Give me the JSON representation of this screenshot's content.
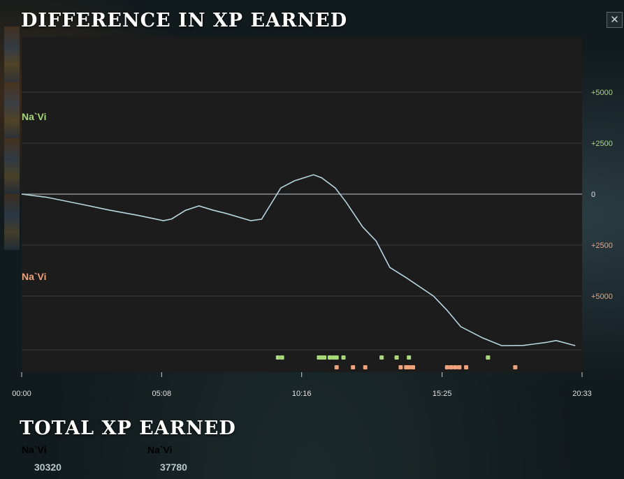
{
  "window": {
    "title": "DIFFERENCE IN XP EARNED",
    "close_label": "✕"
  },
  "colors": {
    "radiant": "#a8d87a",
    "dire": "#f0a27a",
    "line": "#b8d6e0",
    "axis_text": "#e2e2e2"
  },
  "chart_data": {
    "type": "line",
    "title": "DIFFERENCE IN XP EARNED",
    "x_unit": "minutes",
    "x_ticks": [
      "00:00",
      "05:08",
      "10:16",
      "15:25",
      "20:33"
    ],
    "x_tick_values": [
      0,
      5.133,
      10.267,
      15.417,
      20.55
    ],
    "x_range": [
      0,
      20.55
    ],
    "y_ticks": [
      {
        "value": 5000,
        "label": "+5000",
        "side": "radiant"
      },
      {
        "value": 2500,
        "label": "+2500",
        "side": "radiant"
      },
      {
        "value": 0,
        "label": "0",
        "side": "neutral"
      },
      {
        "value": -2500,
        "label": "+2500",
        "side": "dire"
      },
      {
        "value": -5000,
        "label": "+5000",
        "side": "dire"
      }
    ],
    "y_range": [
      -7650,
      7650
    ],
    "upper_team_label": "Na`Vi",
    "lower_team_label": "Na`Vi",
    "grid": true,
    "series": [
      {
        "x": [
          0,
          0.9,
          2.2,
          3.2,
          4.3,
          5.2,
          5.5,
          6.0,
          6.5,
          7.0,
          7.5,
          8.4,
          8.8,
          9.5,
          10.0,
          10.7,
          11.0,
          11.5,
          11.9,
          12.5,
          13.0,
          13.5,
          14.1,
          15.1,
          15.6,
          16.1,
          16.9,
          17.6,
          18.4,
          19.2,
          19.6,
          20.3
        ],
        "y": [
          0,
          -150,
          -500,
          -780,
          -1050,
          -1300,
          -1220,
          -800,
          -580,
          -780,
          -950,
          -1300,
          -1230,
          300,
          650,
          950,
          800,
          300,
          -400,
          -1600,
          -2300,
          -3600,
          -4100,
          -5000,
          -5700,
          -6500,
          -7050,
          -7430,
          -7420,
          -7280,
          -7180,
          -7430
        ]
      }
    ],
    "events": {
      "radiant_minutes": [
        9.4,
        9.55,
        10.9,
        11.0,
        11.1,
        11.3,
        11.45,
        11.55,
        11.8,
        13.2,
        13.75,
        14.2,
        17.1
      ],
      "dire_minutes": [
        11.55,
        12.15,
        12.6,
        13.9,
        14.1,
        14.2,
        14.35,
        15.6,
        15.75,
        15.9,
        16.05,
        16.3,
        18.1
      ]
    }
  },
  "totals": {
    "title": "TOTAL XP EARNED",
    "radiant": {
      "name": "Na`Vi",
      "value": "30320"
    },
    "dire": {
      "name": "Na`Vi",
      "value": "37780"
    }
  }
}
